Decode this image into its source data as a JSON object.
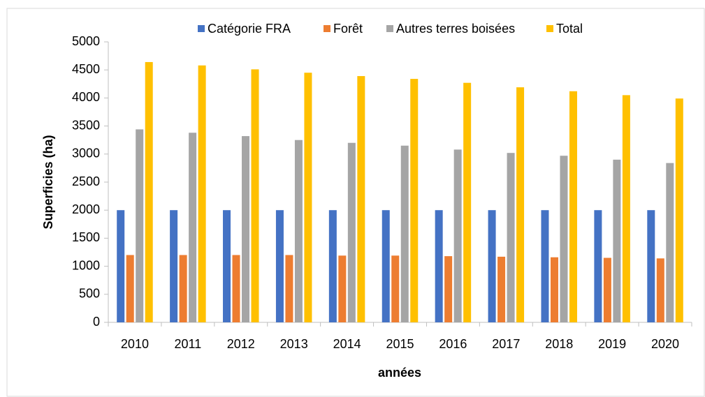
{
  "chart_data": {
    "type": "bar",
    "categories": [
      "2010",
      "2011",
      "2012",
      "2013",
      "2014",
      "2015",
      "2016",
      "2017",
      "2018",
      "2019",
      "2020"
    ],
    "series": [
      {
        "name": "Catégorie FRA",
        "color": "#4472c4",
        "values": [
          2000,
          2000,
          2000,
          2000,
          2000,
          2000,
          2000,
          2000,
          2000,
          2000,
          2000
        ]
      },
      {
        "name": "Forêt",
        "color": "#ed7d31",
        "values": [
          1200,
          1200,
          1200,
          1200,
          1190,
          1190,
          1180,
          1170,
          1160,
          1150,
          1140
        ]
      },
      {
        "name": "Autres terres boisées",
        "color": "#a5a5a5",
        "values": [
          3440,
          3380,
          3320,
          3250,
          3200,
          3150,
          3080,
          3020,
          2970,
          2900,
          2840
        ]
      },
      {
        "name": "Total",
        "color": "#ffc000",
        "values": [
          4640,
          4580,
          4510,
          4450,
          4390,
          4340,
          4270,
          4190,
          4120,
          4050,
          3990
        ]
      }
    ],
    "ylabel": "Superficies (ha)",
    "xlabel": "années",
    "ylim": [
      0,
      5000
    ],
    "yticks": [
      0,
      500,
      1000,
      1500,
      2000,
      2500,
      3000,
      3500,
      4000,
      4500,
      5000
    ],
    "grid": false,
    "legend": "top"
  }
}
